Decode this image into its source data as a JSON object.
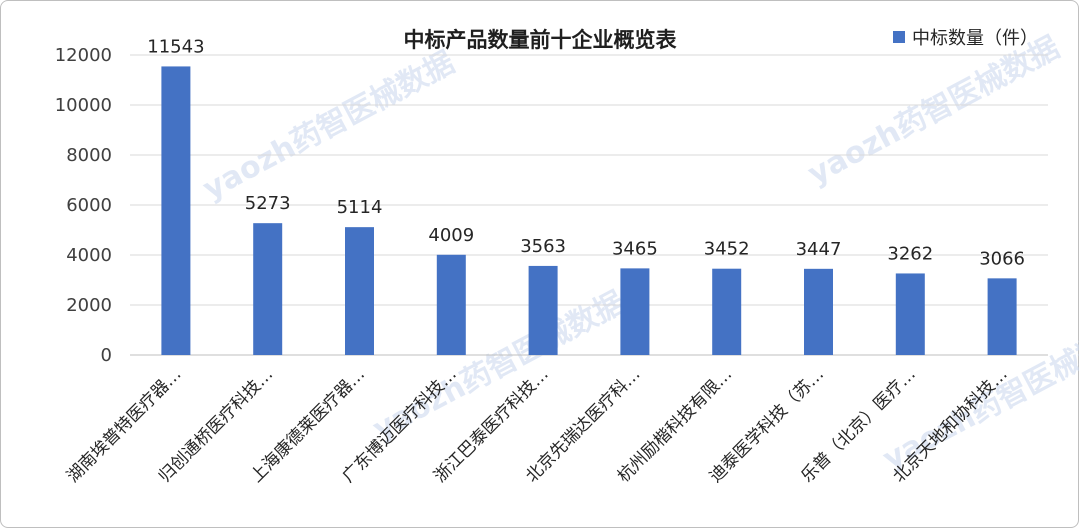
{
  "chart_data": {
    "type": "bar",
    "title": "中标产品数量前十企业概览表",
    "xlabel": "",
    "ylabel": "",
    "ylim": [
      0,
      12000
    ],
    "yticks": [
      0,
      2000,
      4000,
      6000,
      8000,
      10000,
      12000
    ],
    "grid": true,
    "legend_position": "top-right",
    "bar_color": "#4472C4",
    "categories": [
      "湖南埃普特医疗器…",
      "归创通桥医疗科技…",
      "上海康德莱医疗器…",
      "广东博迈医疗科技…",
      "浙江巴泰医疗科技…",
      "北京先瑞达医疗科…",
      "杭州励楷科技有限…",
      "迪泰医学科技（苏…",
      "乐普（北京）医疗…",
      "北京天地和协科技…"
    ],
    "series": [
      {
        "name": "中标数量（件）",
        "values": [
          11543,
          5273,
          5114,
          4009,
          3563,
          3465,
          3452,
          3447,
          3262,
          3066
        ]
      }
    ]
  },
  "watermark": "yaozh药智医械数据"
}
